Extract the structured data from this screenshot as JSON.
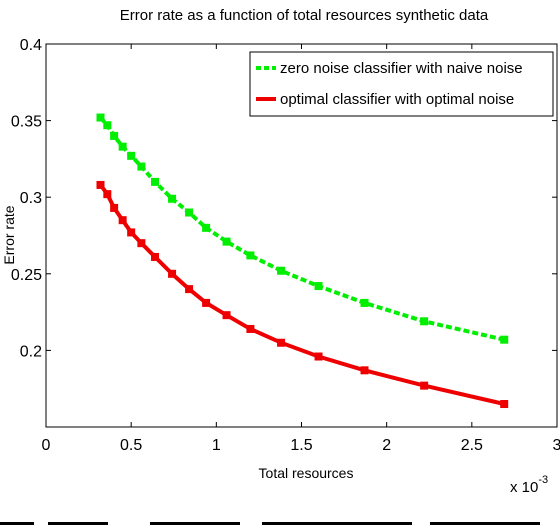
{
  "chart_data": {
    "type": "line",
    "title": "Error rate as a function of total resources synthetic data",
    "xlabel": "Total resources",
    "ylabel": "Error rate",
    "x_multiplier_label": "x 10",
    "x_multiplier_exponent": "-3",
    "xlim": [
      0,
      3
    ],
    "ylim": [
      0.15,
      0.4
    ],
    "x_ticks": [
      "0",
      "0.5",
      "1",
      "1.5",
      "2",
      "2.5",
      "3"
    ],
    "y_ticks": [
      "0.2",
      "0.25",
      "0.3",
      "0.35",
      "0.4"
    ],
    "grid": false,
    "legend_position": "top-right",
    "series": [
      {
        "name": "zero noise classifier with naive noise",
        "color": "#00ee00",
        "style": "dashed",
        "x": [
          0.32,
          0.36,
          0.4,
          0.45,
          0.5,
          0.56,
          0.64,
          0.74,
          0.84,
          0.94,
          1.06,
          1.2,
          1.38,
          1.6,
          1.87,
          2.22,
          2.69
        ],
        "y": [
          0.352,
          0.347,
          0.34,
          0.333,
          0.327,
          0.32,
          0.31,
          0.299,
          0.29,
          0.28,
          0.271,
          0.262,
          0.252,
          0.242,
          0.231,
          0.219,
          0.207
        ]
      },
      {
        "name": "optimal classifier with optimal noise",
        "color": "#ee0000",
        "style": "solid",
        "x": [
          0.32,
          0.36,
          0.4,
          0.45,
          0.5,
          0.56,
          0.64,
          0.74,
          0.84,
          0.94,
          1.06,
          1.2,
          1.38,
          1.6,
          1.87,
          2.22,
          2.69
        ],
        "y": [
          0.308,
          0.302,
          0.293,
          0.285,
          0.277,
          0.27,
          0.261,
          0.25,
          0.24,
          0.231,
          0.223,
          0.214,
          0.205,
          0.196,
          0.187,
          0.177,
          0.165
        ]
      }
    ]
  }
}
